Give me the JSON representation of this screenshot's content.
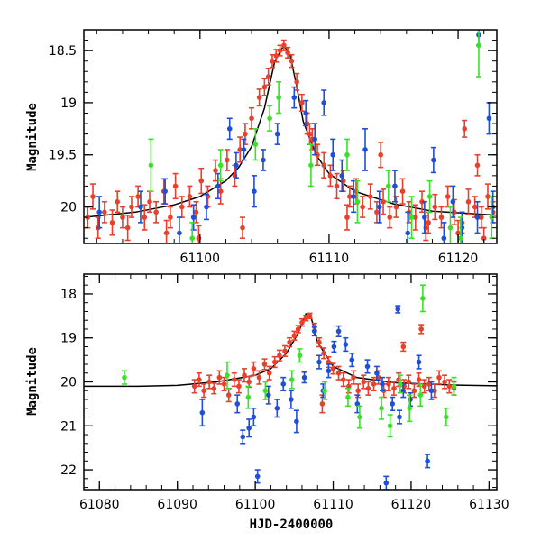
{
  "colors": {
    "red": "#e8402a",
    "blue": "#1f4fd8",
    "green": "#3ce02c",
    "model": "#000000"
  },
  "chart_data": [
    {
      "type": "scatter",
      "title": "",
      "xlabel": "",
      "ylabel": "Magnitude",
      "xlim": [
        61091,
        61123
      ],
      "ylim": [
        20.35,
        18.3
      ],
      "y_inverted": true,
      "xticks": [
        61100,
        61110,
        61120
      ],
      "xticks_minor_step": 2,
      "yticks": [
        18.5,
        19,
        19.5,
        20
      ],
      "yticks_minor_step": 0.1,
      "xtick_labels": [
        "61100",
        "61110",
        "61120"
      ],
      "ytick_labels": [
        "18.5",
        "19",
        "19.5",
        "20"
      ],
      "model": {
        "name": "model light curve",
        "x": [
          61091,
          61095,
          61098,
          61100,
          61102,
          61103,
          61104,
          61105,
          61105.8,
          61106.5,
          61107,
          61107.5,
          61108,
          61109,
          61110,
          61112,
          61115,
          61118,
          61123
        ],
        "y": [
          20.1,
          20.05,
          19.98,
          19.9,
          19.75,
          19.62,
          19.42,
          19.05,
          18.6,
          18.45,
          18.55,
          18.85,
          19.18,
          19.5,
          19.68,
          19.85,
          19.97,
          20.04,
          20.08
        ]
      },
      "series": [
        {
          "name": "red",
          "color": "#e8402a",
          "x": [
            61091.3,
            61091.7,
            61092.1,
            61092.6,
            61093.2,
            61093.6,
            61094.0,
            61094.7,
            61095.2,
            61095.7,
            61096.1,
            61096.6,
            61097.2,
            61097.7,
            61098.1,
            61098.6,
            61099.2,
            61099.7,
            61100.1,
            61100.6,
            61101.2,
            61101.6,
            61102.1,
            61102.7,
            61103.1,
            61103.5,
            61104.0,
            61104.6,
            61105.0,
            61105.3,
            61105.6,
            61105.9,
            61106.2,
            61106.5,
            61106.8,
            61107.1,
            61107.5,
            61107.9,
            61108.3,
            61108.7,
            61109.1,
            61109.6,
            61110.1,
            61110.6,
            61111.1,
            61111.6,
            61112.1,
            61112.6,
            61113.2,
            61113.7,
            61114.2,
            61114.7,
            61115.2,
            61115.7,
            61116.2,
            61116.7,
            61117.2,
            61117.7,
            61118.2,
            61118.7,
            61119.2,
            61119.7,
            61120.3,
            61120.8,
            61121.3,
            61121.8,
            61122.3,
            61122.7,
            61094.4,
            61097.4,
            61099.9,
            61103.3,
            61108.5,
            61111.4,
            61114.0,
            61117.5,
            61120.0,
            61122.0,
            61120.5,
            61121.5
          ],
          "y": [
            20.1,
            19.9,
            20.2,
            20.05,
            20.15,
            19.95,
            20.1,
            20.0,
            19.9,
            20.1,
            19.95,
            20.05,
            19.85,
            20.1,
            19.8,
            20.0,
            19.9,
            20.05,
            19.75,
            19.9,
            19.65,
            19.85,
            19.55,
            19.7,
            19.45,
            19.3,
            19.15,
            18.95,
            18.85,
            18.75,
            18.6,
            18.55,
            18.5,
            18.45,
            18.52,
            18.6,
            18.8,
            19.0,
            19.2,
            19.35,
            19.5,
            19.6,
            19.7,
            19.8,
            19.75,
            19.9,
            19.85,
            20.0,
            19.9,
            20.05,
            19.95,
            20.1,
            20.0,
            19.85,
            20.05,
            20.1,
            19.95,
            20.15,
            20.0,
            20.1,
            19.9,
            20.05,
            20.15,
            19.95,
            20.0,
            20.1,
            19.9,
            20.05,
            20.2,
            20.25,
            20.3,
            20.2,
            19.3,
            20.1,
            19.5,
            20.2,
            20.25,
            20.3,
            19.25,
            19.6
          ],
          "err": [
            0.1,
            0.12,
            0.1,
            0.1,
            0.12,
            0.1,
            0.1,
            0.1,
            0.1,
            0.12,
            0.1,
            0.1,
            0.12,
            0.1,
            0.12,
            0.1,
            0.1,
            0.1,
            0.12,
            0.1,
            0.1,
            0.12,
            0.1,
            0.1,
            0.12,
            0.1,
            0.1,
            0.08,
            0.08,
            0.08,
            0.06,
            0.06,
            0.05,
            0.05,
            0.05,
            0.06,
            0.08,
            0.08,
            0.1,
            0.1,
            0.1,
            0.12,
            0.1,
            0.12,
            0.1,
            0.1,
            0.12,
            0.1,
            0.12,
            0.1,
            0.12,
            0.1,
            0.1,
            0.12,
            0.1,
            0.12,
            0.1,
            0.1,
            0.12,
            0.1,
            0.1,
            0.12,
            0.1,
            0.12,
            0.1,
            0.1,
            0.12,
            0.1,
            0.12,
            0.12,
            0.12,
            0.1,
            0.1,
            0.12,
            0.12,
            0.12,
            0.12,
            0.1,
            0.08,
            0.1
          ]
        },
        {
          "name": "blue",
          "color": "#1f4fd8",
          "x": [
            61092.2,
            61095.4,
            61097.3,
            61098.4,
            61099.5,
            61100.5,
            61101.4,
            61102.3,
            61102.8,
            61103.4,
            61104.2,
            61104.9,
            61106.0,
            61107.3,
            61108.2,
            61108.9,
            61109.6,
            61110.3,
            61111.0,
            61111.9,
            61112.8,
            61113.9,
            61115.1,
            61116.1,
            61117.4,
            61118.1,
            61118.9,
            61119.6,
            61120.3,
            61121.6,
            61122.4,
            61122.7,
            61121.5
          ],
          "y": [
            20.05,
            20.0,
            19.85,
            20.25,
            20.1,
            20.0,
            19.8,
            19.25,
            19.6,
            19.45,
            19.85,
            19.55,
            19.3,
            18.95,
            19.1,
            19.35,
            19.0,
            19.5,
            19.7,
            19.9,
            19.45,
            20.0,
            19.8,
            20.25,
            20.1,
            19.55,
            20.3,
            19.95,
            20.2,
            18.35,
            19.15,
            20.0,
            20.1
          ],
          "err": [
            0.15,
            0.15,
            0.12,
            0.15,
            0.12,
            0.12,
            0.12,
            0.1,
            0.12,
            0.1,
            0.15,
            0.1,
            0.1,
            0.1,
            0.12,
            0.15,
            0.12,
            0.15,
            0.15,
            0.15,
            0.2,
            0.15,
            0.15,
            0.2,
            0.15,
            0.12,
            0.15,
            0.15,
            0.15,
            0.1,
            0.15,
            0.15,
            0.15
          ]
        },
        {
          "name": "green",
          "color": "#3ce02c",
          "x": [
            61096.2,
            61099.4,
            61101.6,
            61104.3,
            61105.4,
            61106.1,
            61108.6,
            61111.4,
            61112.2,
            61114.6,
            61116.4,
            61117.8,
            61119.4,
            61121.6,
            61122.6,
            61120.2
          ],
          "y": [
            19.6,
            20.3,
            19.6,
            19.4,
            19.15,
            18.95,
            19.6,
            19.5,
            19.95,
            19.8,
            20.1,
            19.9,
            20.2,
            18.45,
            20.1,
            20.3
          ],
          "err": [
            0.25,
            0.15,
            0.15,
            0.15,
            0.12,
            0.15,
            0.2,
            0.15,
            0.2,
            0.15,
            0.2,
            0.15,
            0.2,
            0.3,
            0.2,
            0.2
          ]
        }
      ]
    },
    {
      "type": "scatter",
      "title": "",
      "xlabel": "HJD-2400000",
      "ylabel": "Magnitude",
      "xlim": [
        61078,
        61131
      ],
      "ylim": [
        22.45,
        17.55
      ],
      "y_inverted": true,
      "xticks": [
        61080,
        61090,
        61100,
        61110,
        61120,
        61130
      ],
      "xticks_minor_step": 2,
      "yticks": [
        18,
        19,
        20,
        21,
        22
      ],
      "yticks_minor_step": 0.2,
      "xtick_labels": [
        "61080",
        "61090",
        "61100",
        "61110",
        "61120",
        "61130"
      ],
      "ytick_labels": [
        "18",
        "19",
        "20",
        "21",
        "22"
      ],
      "model": {
        "name": "model light curve",
        "x": [
          61078,
          61085,
          61090,
          61095,
          61100,
          61102,
          61104,
          61105.5,
          61106.5,
          61107.2,
          61108,
          61110,
          61113,
          61118,
          61125,
          61131
        ],
        "y": [
          20.1,
          20.1,
          20.08,
          20.0,
          19.85,
          19.7,
          19.35,
          18.9,
          18.45,
          18.55,
          19.1,
          19.65,
          19.9,
          20.02,
          20.07,
          20.09
        ]
      },
      "series": [
        {
          "name": "red",
          "color": "#e8402a",
          "x": [
            61092.2,
            61092.8,
            61093.4,
            61094.1,
            61094.7,
            61095.4,
            61096.0,
            61096.6,
            61097.3,
            61097.9,
            61098.6,
            61099.2,
            61099.8,
            61100.5,
            61101.2,
            61101.8,
            61102.5,
            61103.1,
            61103.8,
            61104.4,
            61105.0,
            61105.5,
            61106.0,
            61106.5,
            61107.0,
            61107.6,
            61108.2,
            61108.8,
            61109.4,
            61110.0,
            61110.7,
            61111.3,
            61112.0,
            61112.6,
            61113.2,
            61113.9,
            61114.5,
            61115.2,
            61115.8,
            61116.5,
            61117.1,
            61117.8,
            61118.4,
            61119.1,
            61119.7,
            61120.4,
            61121.0,
            61121.7,
            61122.3,
            61123.0,
            61123.6,
            61124.3,
            61124.9,
            61125.5,
            61108.6,
            61119.0,
            61121.3
          ],
          "y": [
            20.1,
            19.95,
            20.2,
            20.0,
            20.15,
            19.9,
            20.05,
            20.3,
            19.95,
            20.1,
            19.85,
            20.0,
            19.7,
            19.9,
            19.6,
            19.8,
            19.55,
            19.4,
            19.3,
            19.1,
            18.95,
            18.8,
            18.65,
            18.55,
            18.5,
            18.75,
            19.1,
            19.35,
            19.55,
            19.7,
            19.8,
            19.95,
            20.1,
            19.9,
            20.2,
            20.0,
            20.15,
            20.05,
            19.9,
            20.2,
            20.05,
            20.15,
            19.95,
            20.1,
            20.0,
            20.2,
            19.95,
            20.1,
            20.05,
            20.2,
            19.9,
            20.0,
            20.1,
            20.15,
            20.5,
            19.2,
            18.8
          ],
          "err": [
            0.15,
            0.15,
            0.15,
            0.15,
            0.12,
            0.15,
            0.15,
            0.15,
            0.15,
            0.15,
            0.15,
            0.12,
            0.15,
            0.15,
            0.12,
            0.15,
            0.12,
            0.12,
            0.12,
            0.1,
            0.1,
            0.08,
            0.08,
            0.06,
            0.06,
            0.08,
            0.1,
            0.12,
            0.12,
            0.12,
            0.15,
            0.15,
            0.15,
            0.15,
            0.15,
            0.15,
            0.15,
            0.15,
            0.15,
            0.15,
            0.15,
            0.15,
            0.15,
            0.15,
            0.15,
            0.15,
            0.15,
            0.15,
            0.15,
            0.15,
            0.15,
            0.15,
            0.15,
            0.15,
            0.2,
            0.1,
            0.1
          ]
        },
        {
          "name": "blue",
          "color": "#1f4fd8",
          "x": [
            61093.2,
            61097.7,
            61098.4,
            61099.2,
            61099.8,
            61100.3,
            61101.7,
            61102.8,
            61103.6,
            61104.6,
            61105.3,
            61106.3,
            61107.6,
            61108.2,
            61108.7,
            61109.4,
            61110.1,
            61110.7,
            61111.6,
            61112.4,
            61113.1,
            61114.4,
            61115.6,
            61116.3,
            61116.8,
            61117.6,
            61118.3,
            61119.0,
            61119.9,
            61121.0,
            61122.1,
            61122.6,
            61118.5
          ],
          "y": [
            20.7,
            20.5,
            21.25,
            21.05,
            20.8,
            22.15,
            20.3,
            20.6,
            20.05,
            20.4,
            20.9,
            19.9,
            18.85,
            19.55,
            20.2,
            19.75,
            19.2,
            18.85,
            19.15,
            19.5,
            20.5,
            19.65,
            19.8,
            20.05,
            22.3,
            20.5,
            18.35,
            20.2,
            20.4,
            19.55,
            21.8,
            20.2,
            20.8
          ],
          "err": [
            0.3,
            0.2,
            0.15,
            0.2,
            0.2,
            0.15,
            0.2,
            0.2,
            0.15,
            0.2,
            0.25,
            0.12,
            0.1,
            0.15,
            0.15,
            0.15,
            0.12,
            0.12,
            0.15,
            0.15,
            0.2,
            0.15,
            0.15,
            0.15,
            0.15,
            0.15,
            0.08,
            0.15,
            0.15,
            0.15,
            0.15,
            0.2,
            0.15
          ]
        },
        {
          "name": "green",
          "color": "#3ce02c",
          "x": [
            61083.2,
            61096.4,
            61099.1,
            61101.3,
            61104.7,
            61105.7,
            61108.9,
            61111.9,
            61113.4,
            61116.2,
            61117.3,
            61118.6,
            61119.8,
            61121.2,
            61121.5,
            61124.5,
            61125.5
          ],
          "y": [
            19.9,
            19.85,
            20.35,
            20.2,
            19.95,
            19.4,
            20.2,
            20.35,
            20.8,
            20.6,
            21.0,
            20.05,
            20.6,
            20.3,
            18.1,
            20.8,
            20.1
          ],
          "err": [
            0.15,
            0.3,
            0.25,
            0.2,
            0.2,
            0.15,
            0.2,
            0.2,
            0.25,
            0.25,
            0.25,
            0.2,
            0.3,
            0.25,
            0.3,
            0.2,
            0.2
          ]
        }
      ]
    }
  ]
}
